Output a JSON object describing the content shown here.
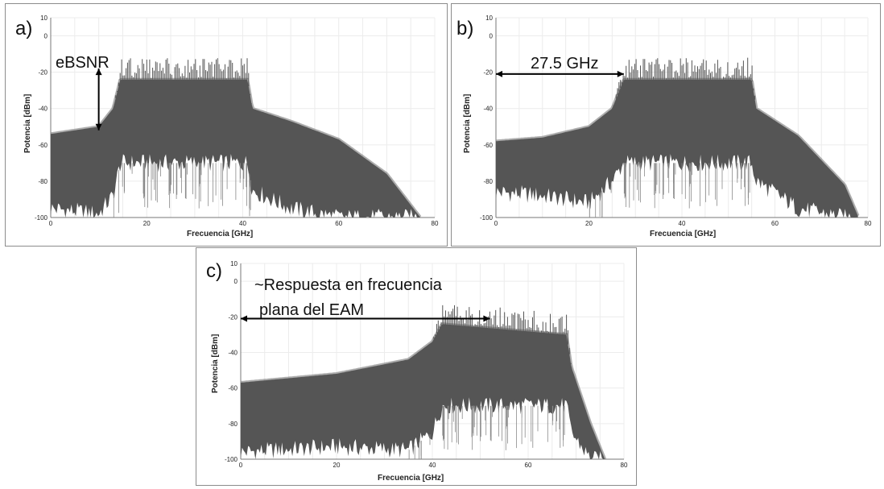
{
  "colors": {
    "spectrum": "#555555",
    "spectrum_light": "#8a8a8a",
    "grid": "#ececec",
    "axis": "#777777",
    "arrow": "#000000"
  },
  "chart_data": [
    {
      "type": "area",
      "panel_label": "a)",
      "xlabel": "Frecuencia [GHz]",
      "ylabel": "Potencia [dBm]",
      "xlim": [
        0,
        80
      ],
      "ylim": [
        -100,
        10
      ],
      "x_ticks": [
        "0",
        "20",
        "40",
        "60",
        "80"
      ],
      "y_ticks": [
        "10",
        "0",
        "-20",
        "-40",
        "-60",
        "-80",
        "-100"
      ],
      "grid": true,
      "annotation": {
        "text": "eBSNR",
        "arrow_x": 10,
        "arrow_from_y": -18,
        "arrow_to_y": -52
      },
      "series": [
        {
          "x": [
            0,
            10,
            13,
            14.5,
            41,
            42,
            50,
            60,
            70,
            77
          ],
          "upper": [
            -54,
            -50,
            -40,
            -24,
            -24,
            -40,
            -47,
            -57,
            -76,
            -100
          ],
          "lower": [
            -95,
            -98,
            -88,
            -70,
            -70,
            -85,
            -95,
            -100,
            -100,
            -100
          ],
          "peak": [
            -54,
            -50,
            -40,
            -12,
            -12,
            -40,
            -47,
            -57,
            -76,
            -100
          ]
        }
      ]
    },
    {
      "type": "area",
      "panel_label": "b)",
      "xlabel": "Frecuencia [GHz]",
      "ylabel": "Potencia [dBm]",
      "xlim": [
        0,
        80
      ],
      "ylim": [
        -100,
        10
      ],
      "x_ticks": [
        "0",
        "20",
        "40",
        "60",
        "80"
      ],
      "y_ticks": [
        "10",
        "0",
        "-20",
        "-40",
        "-60",
        "-80",
        "-100"
      ],
      "grid": true,
      "annotation": {
        "text": "27.5 GHz",
        "arrow_y": -21,
        "arrow_from_x": 0,
        "arrow_to_x": 27.5
      },
      "series": [
        {
          "x": [
            0,
            10,
            20,
            25,
            27.5,
            55,
            56,
            65,
            75,
            78
          ],
          "upper": [
            -58,
            -56,
            -50,
            -40,
            -24,
            -24,
            -40,
            -55,
            -82,
            -100
          ],
          "lower": [
            -86,
            -88,
            -92,
            -80,
            -70,
            -70,
            -80,
            -95,
            -100,
            -100
          ],
          "peak": [
            -58,
            -56,
            -50,
            -40,
            -12,
            -12,
            -40,
            -55,
            -82,
            -100
          ]
        }
      ]
    },
    {
      "type": "area",
      "panel_label": "c)",
      "xlabel": "Frecuencia [GHz]",
      "ylabel": "Potencia [dBm]",
      "xlim": [
        0,
        80
      ],
      "ylim": [
        -100,
        10
      ],
      "x_ticks": [
        "0",
        "20",
        "40",
        "60",
        "80"
      ],
      "y_ticks": [
        "10",
        "0",
        "-20",
        "-40",
        "-60",
        "-80",
        "-100"
      ],
      "grid": true,
      "annotation": {
        "text_line1": "~Respuesta en frecuencia",
        "text_line2": "plana del EAM",
        "arrow_y": -21,
        "arrow_from_x": 0,
        "arrow_to_x": 52
      },
      "series": [
        {
          "x": [
            0,
            20,
            35,
            40,
            42,
            68,
            69,
            73,
            76
          ],
          "upper": [
            -57,
            -52,
            -44,
            -34,
            -24,
            -30,
            -48,
            -80,
            -100
          ],
          "lower": [
            -96,
            -93,
            -95,
            -85,
            -70,
            -70,
            -85,
            -100,
            -100
          ],
          "peak": [
            -57,
            -52,
            -44,
            -34,
            -12,
            -18,
            -48,
            -80,
            -100
          ]
        }
      ]
    }
  ]
}
